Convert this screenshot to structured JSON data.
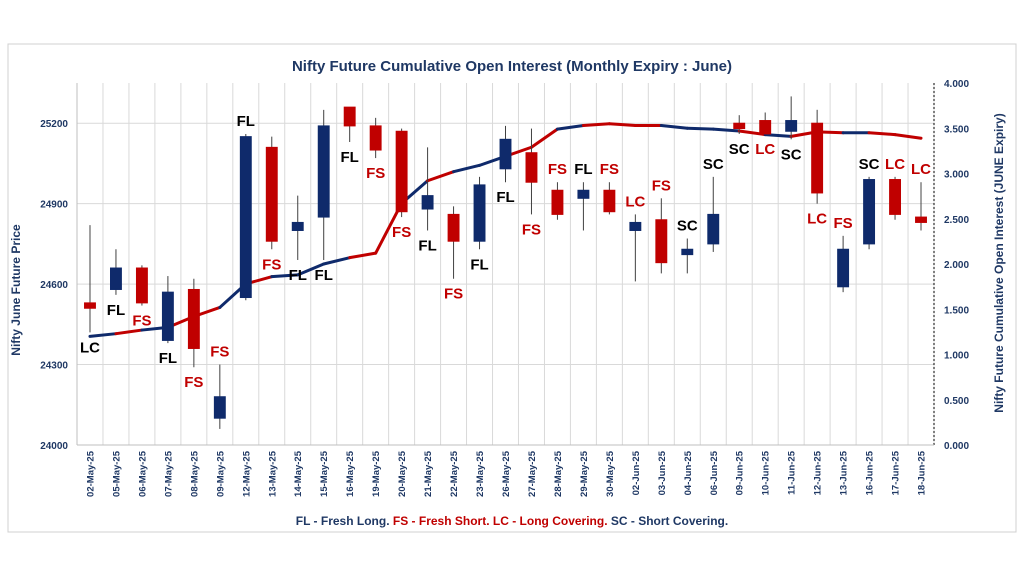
{
  "chart_data": {
    "type": "candlestick",
    "title": "Nifty Future Cumulative Open Interest (Monthly Expiry : June)",
    "ylabel_left": "Nifty June Future Price",
    "ylabel_right": "Nifty Future Cumulative Open Interest (JUNE Expiry)",
    "ylim_left": [
      24000,
      25350
    ],
    "yticks_left": [
      "24000",
      "24300",
      "24600",
      "24900",
      "25200"
    ],
    "ylim_right": [
      0,
      4.0
    ],
    "yticks_right": [
      "0.000",
      "0.500",
      "1.000",
      "1.500",
      "2.000",
      "2.500",
      "3.000",
      "3.500",
      "4.000"
    ],
    "grid": true,
    "colors": {
      "up": "#0f2a6b",
      "down": "#c00000",
      "label_red": "#c00000",
      "label_black": "#000000",
      "title": "#1f3864"
    },
    "candles": [
      {
        "date": "02-May-25",
        "open": 24530,
        "high": 24820,
        "low": 24420,
        "close": 24510,
        "label": "LC",
        "label_color": "black",
        "label_pos": "below",
        "oi": 1.2
      },
      {
        "date": "05-May-25",
        "open": 24580,
        "high": 24730,
        "low": 24560,
        "close": 24660,
        "label": "FL",
        "label_color": "black",
        "label_pos": "below",
        "oi": 1.23
      },
      {
        "date": "06-May-25",
        "open": 24660,
        "high": 24670,
        "low": 24520,
        "close": 24530,
        "label": "FS",
        "label_color": "red",
        "label_pos": "below",
        "oi": 1.27
      },
      {
        "date": "07-May-25",
        "open": 24390,
        "high": 24630,
        "low": 24380,
        "close": 24570,
        "label": "FL",
        "label_color": "black",
        "label_pos": "below",
        "oi": 1.3
      },
      {
        "date": "08-May-25",
        "open": 24580,
        "high": 24620,
        "low": 24290,
        "close": 24360,
        "label": "FS",
        "label_color": "red",
        "label_pos": "below",
        "oi": 1.42
      },
      {
        "date": "09-May-25",
        "open": 24100,
        "high": 24300,
        "low": 24060,
        "close": 24180,
        "label": "FS",
        "label_color": "red",
        "label_pos": "above",
        "oi": 1.52
      },
      {
        "date": "12-May-25",
        "open": 24550,
        "high": 25160,
        "low": 24540,
        "close": 25150,
        "label": "FL",
        "label_color": "black",
        "label_pos": "above",
        "oi": 1.78
      },
      {
        "date": "13-May-25",
        "open": 25110,
        "high": 25150,
        "low": 24730,
        "close": 24760,
        "label": "FS",
        "label_color": "red",
        "label_pos": "below",
        "oi": 1.86
      },
      {
        "date": "14-May-25",
        "open": 24800,
        "high": 24930,
        "low": 24690,
        "close": 24830,
        "label": "FL",
        "label_color": "black",
        "label_pos": "below",
        "oi": 1.88
      },
      {
        "date": "15-May-25",
        "open": 24850,
        "high": 25250,
        "low": 24690,
        "close": 25190,
        "label": "FL",
        "label_color": "black",
        "label_pos": "below",
        "oi": 2.0
      },
      {
        "date": "16-May-25",
        "open": 25260,
        "high": 25260,
        "low": 25130,
        "close": 25190,
        "label": "FL",
        "label_color": "black",
        "label_pos": "below",
        "oi": 2.07
      },
      {
        "date": "19-May-25",
        "open": 25190,
        "high": 25220,
        "low": 25070,
        "close": 25100,
        "label": "FS",
        "label_color": "red",
        "label_pos": "below",
        "oi": 2.12
      },
      {
        "date": "20-May-25",
        "open": 25170,
        "high": 25180,
        "low": 24850,
        "close": 24870,
        "label": "FS",
        "label_color": "red",
        "label_pos": "below",
        "oi": 2.67
      },
      {
        "date": "21-May-25",
        "open": 24880,
        "high": 25110,
        "low": 24800,
        "close": 24930,
        "label": "FL",
        "label_color": "black",
        "label_pos": "below",
        "oi": 2.92
      },
      {
        "date": "22-May-25",
        "open": 24860,
        "high": 24890,
        "low": 24620,
        "close": 24760,
        "label": "FS",
        "label_color": "red",
        "label_pos": "below",
        "oi": 3.02
      },
      {
        "date": "23-May-25",
        "open": 24760,
        "high": 25000,
        "low": 24730,
        "close": 24970,
        "label": "FL",
        "label_color": "black",
        "label_pos": "below",
        "oi": 3.09
      },
      {
        "date": "26-May-25",
        "open": 25030,
        "high": 25190,
        "low": 24980,
        "close": 25140,
        "label": "FL",
        "label_color": "black",
        "label_pos": "below",
        "oi": 3.19
      },
      {
        "date": "27-May-25",
        "open": 25090,
        "high": 25180,
        "low": 24860,
        "close": 24980,
        "label": "FS",
        "label_color": "red",
        "label_pos": "below",
        "oi": 3.29
      },
      {
        "date": "28-May-25",
        "open": 24950,
        "high": 24980,
        "low": 24840,
        "close": 24860,
        "label": "FS",
        "label_color": "red",
        "label_pos": "above",
        "oi": 3.49
      },
      {
        "date": "29-May-25",
        "open": 24920,
        "high": 24980,
        "low": 24800,
        "close": 24950,
        "label": "FL",
        "label_color": "black",
        "label_pos": "above",
        "oi": 3.53
      },
      {
        "date": "30-May-25",
        "open": 24950,
        "high": 24980,
        "low": 24860,
        "close": 24870,
        "label": "FS",
        "label_color": "red",
        "label_pos": "above",
        "oi": 3.55
      },
      {
        "date": "02-Jun-25",
        "open": 24800,
        "high": 24860,
        "low": 24610,
        "close": 24830,
        "label": "LC",
        "label_color": "red",
        "label_pos": "above",
        "oi": 3.53
      },
      {
        "date": "03-Jun-25",
        "open": 24840,
        "high": 24920,
        "low": 24640,
        "close": 24680,
        "label": "FS",
        "label_color": "red",
        "label_pos": "above",
        "oi": 3.53
      },
      {
        "date": "04-Jun-25",
        "open": 24710,
        "high": 24770,
        "low": 24640,
        "close": 24730,
        "label": "SC",
        "label_color": "black",
        "label_pos": "above",
        "oi": 3.5
      },
      {
        "date": "06-Jun-25",
        "open": 24750,
        "high": 25000,
        "low": 24720,
        "close": 24860,
        "label": "SC",
        "label_color": "black",
        "label_pos": "above",
        "oi": 3.49
      },
      {
        "date": "09-Jun-25",
        "open": 25200,
        "high": 25230,
        "low": 25160,
        "close": 25180,
        "label": "SC",
        "label_color": "black",
        "label_pos": "below",
        "oi": 3.47
      },
      {
        "date": "10-Jun-25",
        "open": 25210,
        "high": 25240,
        "low": 25160,
        "close": 25160,
        "label": "LC",
        "label_color": "red",
        "label_pos": "below",
        "oi": 3.43
      },
      {
        "date": "11-Jun-25",
        "open": 25170,
        "high": 25300,
        "low": 25140,
        "close": 25210,
        "label": "SC",
        "label_color": "black",
        "label_pos": "below",
        "oi": 3.41
      },
      {
        "date": "12-Jun-25",
        "open": 25200,
        "high": 25250,
        "low": 24900,
        "close": 24940,
        "label": "LC",
        "label_color": "red",
        "label_pos": "below",
        "oi": 3.46
      },
      {
        "date": "13-Jun-25",
        "open": 24590,
        "high": 24780,
        "low": 24570,
        "close": 24730,
        "label": "FS",
        "label_color": "red",
        "label_pos": "above",
        "oi": 3.45
      },
      {
        "date": "16-Jun-25",
        "open": 24750,
        "high": 25000,
        "low": 24730,
        "close": 24990,
        "label": "SC",
        "label_color": "black",
        "label_pos": "above",
        "oi": 3.45
      },
      {
        "date": "17-Jun-25",
        "open": 24990,
        "high": 25000,
        "low": 24840,
        "close": 24860,
        "label": "LC",
        "label_color": "red",
        "label_pos": "above",
        "oi": 3.43
      },
      {
        "date": "18-Jun-25",
        "open": 24850,
        "high": 24980,
        "low": 24800,
        "close": 24830,
        "label": "LC",
        "label_color": "red",
        "label_pos": "above",
        "oi": 3.39
      }
    ],
    "legend": [
      {
        "text": "FL - Fresh Long.",
        "color": "#1f3864"
      },
      {
        "text": "FS - Fresh Short.",
        "color": "#c00000"
      },
      {
        "text": "LC - Long Covering.",
        "color": "#c00000"
      },
      {
        "text": "SC - Short Covering.",
        "color": "#1f3864"
      }
    ]
  }
}
